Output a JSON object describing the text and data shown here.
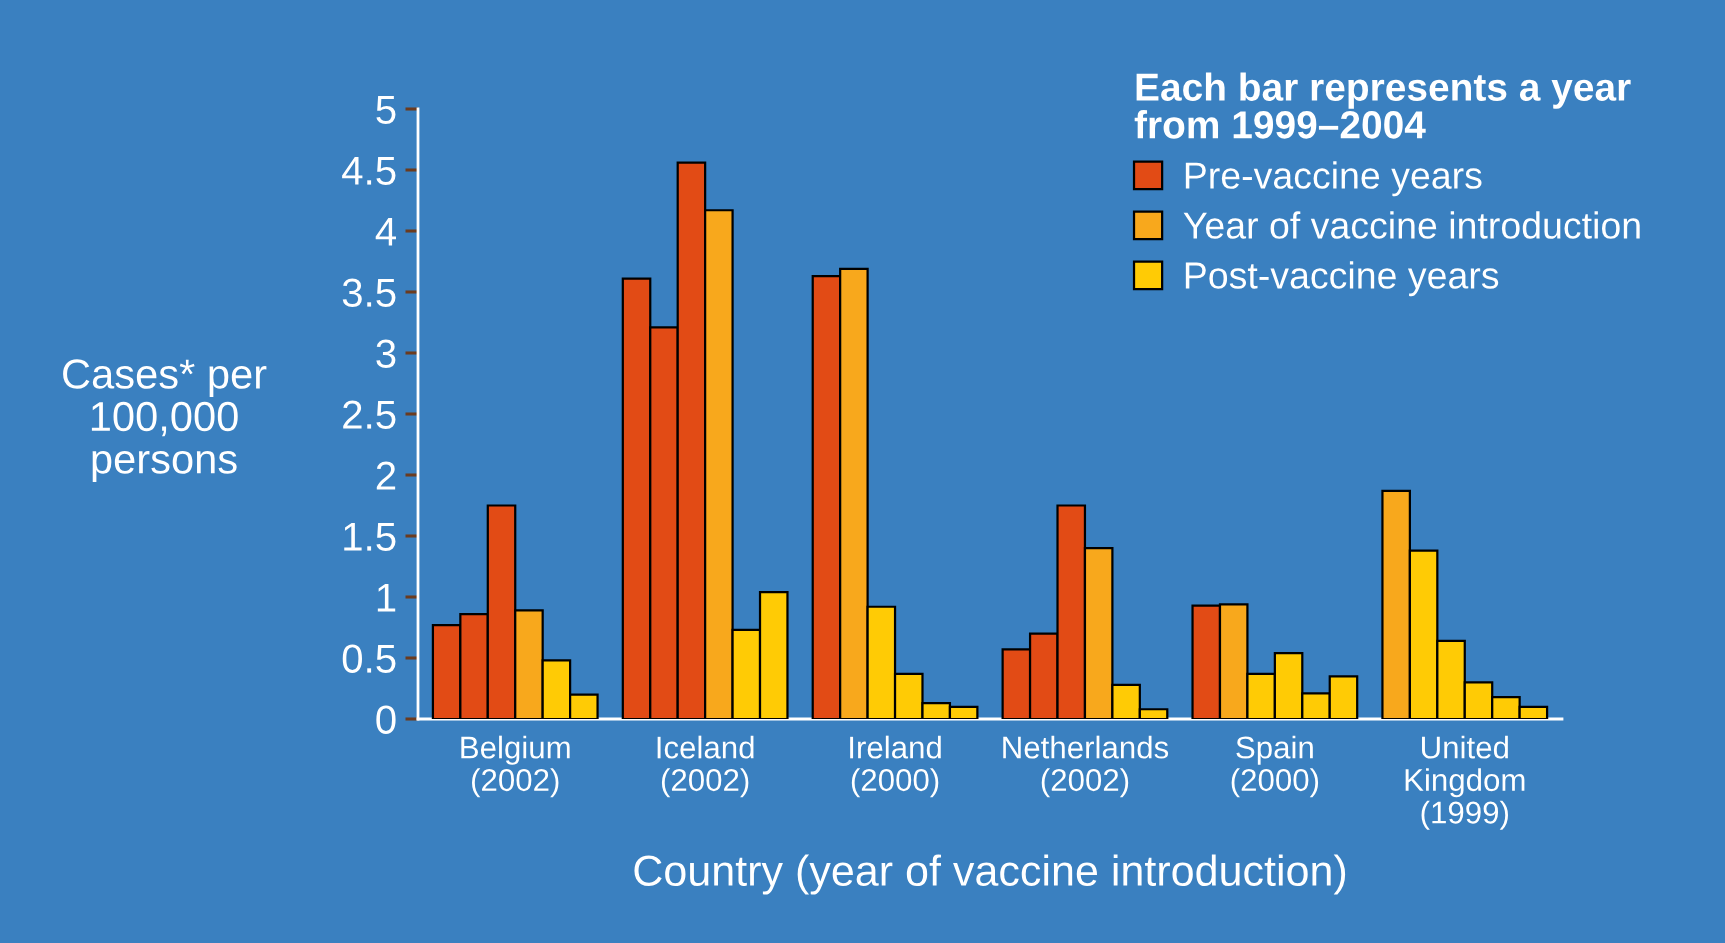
{
  "chart_data": {
    "type": "bar",
    "legend_title": "Each bar represents a year\nfrom 1999–2004",
    "xlabel": "Country (year of vaccine introduction)",
    "ylabel": "Cases* per\n100,000\npersons",
    "categories": [
      "Belgium\n(2002)",
      "Iceland\n(2002)",
      "Ireland\n(2000)",
      "Netherlands\n(2002)",
      "Spain\n(2000)",
      "United\nKingdom\n(1999)"
    ],
    "series": [
      {
        "values": [
          0.77,
          3.61,
          3.63,
          0.57,
          0.93,
          1.87
        ],
        "colors": [
          "#e24b15",
          "#e24b15",
          "#e24b15",
          "#e24b15",
          "#e24b15",
          "#f8a81c"
        ]
      },
      {
        "values": [
          0.86,
          3.21,
          3.69,
          0.7,
          0.94,
          1.38
        ],
        "colors": [
          "#e24b15",
          "#e24b15",
          "#f8a81c",
          "#e24b15",
          "#f8a81c",
          "#ffcb05"
        ]
      },
      {
        "values": [
          1.75,
          4.56,
          0.92,
          1.75,
          0.37,
          0.64
        ],
        "colors": [
          "#e24b15",
          "#e24b15",
          "#ffcb05",
          "#e24b15",
          "#ffcb05",
          "#ffcb05"
        ]
      },
      {
        "values": [
          0.89,
          4.17,
          0.37,
          1.4,
          0.54,
          0.3
        ],
        "colors": [
          "#f8a81c",
          "#f8a81c",
          "#ffcb05",
          "#f8a81c",
          "#ffcb05",
          "#ffcb05"
        ]
      },
      {
        "values": [
          0.48,
          0.73,
          0.13,
          0.28,
          0.21,
          0.18
        ],
        "colors": [
          "#ffcb05",
          "#ffcb05",
          "#ffcb05",
          "#ffcb05",
          "#ffcb05",
          "#ffcb05"
        ]
      },
      {
        "values": [
          0.2,
          1.04,
          0.1,
          0.08,
          0.35,
          0.1
        ],
        "colors": [
          "#ffcb05",
          "#ffcb05",
          "#ffcb05",
          "#ffcb05",
          "#ffcb05",
          "#ffcb05"
        ]
      },
      {
        "name": "Pre-vaccine years",
        "color": "#e24b15",
        "values": [
          null,
          null,
          null,
          null,
          null,
          null
        ]
      },
      {
        "name": "Year of vaccine introduction",
        "color": "#f8a81c",
        "values": [
          null,
          null,
          null,
          null,
          null,
          null
        ]
      },
      {
        "name": "Post-vaccine years",
        "color": "#ffcb05",
        "values": [
          null,
          null,
          null,
          null,
          null,
          null
        ]
      }
    ],
    "ylim": [
      0,
      5
    ],
    "yticks": [
      0,
      0.5,
      1,
      1.5,
      2,
      2.5,
      3,
      3.5,
      4,
      4.5,
      5
    ],
    "legend": "top right"
  }
}
